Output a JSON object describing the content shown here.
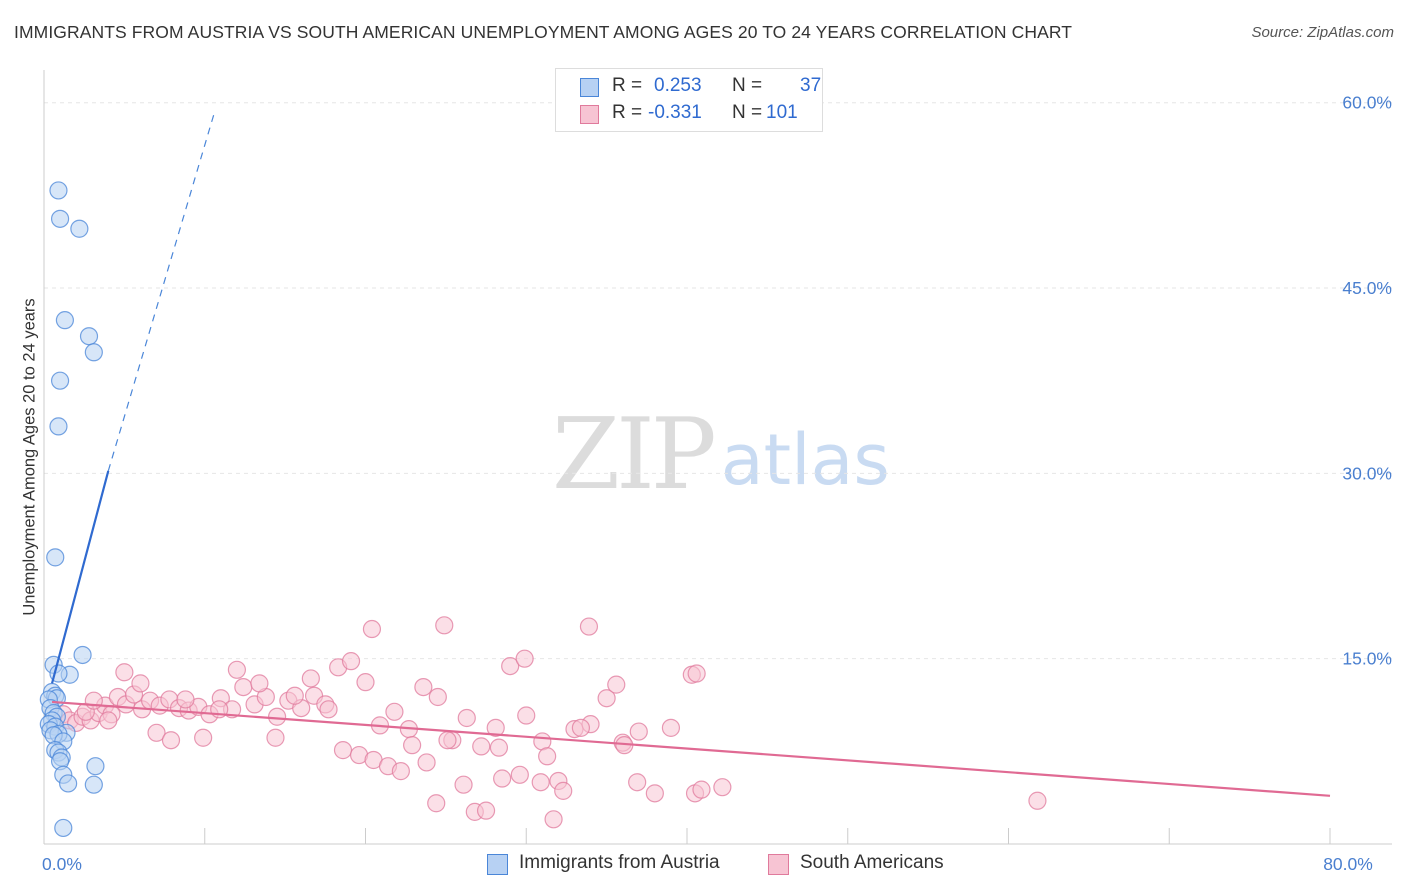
{
  "header": {
    "title": "IMMIGRANTS FROM AUSTRIA VS SOUTH AMERICAN UNEMPLOYMENT AMONG AGES 20 TO 24 YEARS CORRELATION CHART",
    "source": "Source: ZipAtlas.com"
  },
  "watermark": {
    "zip": "ZIP",
    "atlas": "atlas"
  },
  "legend": {
    "r_label": "R =",
    "n_label": "N =",
    "series": [
      {
        "name": "Immigrants from Austria",
        "r": "0.253",
        "n": "37",
        "color": "#4a86d8",
        "fill": "#b7d1f3"
      },
      {
        "name": "South Americans",
        "r": "-0.331",
        "n": "101",
        "color": "#e07a9c",
        "fill": "#f7c4d3"
      }
    ]
  },
  "chart_data": {
    "type": "scatter",
    "title": "IMMIGRANTS FROM AUSTRIA VS SOUTH AMERICAN UNEMPLOYMENT AMONG AGES 20 TO 24 YEARS CORRELATION CHART",
    "xlabel": "",
    "ylabel": "Unemployment Among Ages 20 to 24 years",
    "xlim": [
      0,
      80
    ],
    "ylim": [
      0,
      62
    ],
    "x_tick_labels": [
      {
        "value": 0,
        "label": "0.0%"
      },
      {
        "value": 80,
        "label": "80.0%"
      }
    ],
    "y_tick_labels": [
      {
        "value": 15,
        "label": "15.0%"
      },
      {
        "value": 30,
        "label": "30.0%"
      },
      {
        "value": 45,
        "label": "45.0%"
      },
      {
        "value": 60,
        "label": "60.0%"
      }
    ],
    "series": [
      {
        "name": "Immigrants from Austria",
        "color": "#4a86d8",
        "fill": "#b7d1f3",
        "points": [
          [
            0.9,
            52.9
          ],
          [
            1.0,
            50.6
          ],
          [
            2.2,
            49.8
          ],
          [
            1.3,
            42.4
          ],
          [
            2.8,
            41.1
          ],
          [
            3.1,
            39.8
          ],
          [
            1.0,
            37.5
          ],
          [
            0.9,
            33.8
          ],
          [
            0.7,
            23.2
          ],
          [
            2.4,
            15.3
          ],
          [
            0.6,
            14.5
          ],
          [
            1.6,
            13.7
          ],
          [
            0.9,
            13.8
          ],
          [
            0.5,
            12.3
          ],
          [
            0.7,
            12.0
          ],
          [
            0.8,
            11.8
          ],
          [
            0.3,
            11.7
          ],
          [
            0.4,
            11.0
          ],
          [
            0.6,
            10.6
          ],
          [
            0.8,
            10.3
          ],
          [
            0.5,
            10.0
          ],
          [
            0.3,
            9.7
          ],
          [
            0.7,
            9.5
          ],
          [
            0.4,
            9.2
          ],
          [
            1.4,
            9.0
          ],
          [
            0.9,
            8.9
          ],
          [
            0.6,
            8.8
          ],
          [
            1.2,
            8.3
          ],
          [
            0.7,
            7.6
          ],
          [
            0.9,
            7.4
          ],
          [
            1.1,
            7.0
          ],
          [
            1.0,
            6.7
          ],
          [
            3.2,
            6.3
          ],
          [
            1.2,
            5.6
          ],
          [
            1.5,
            4.9
          ],
          [
            3.1,
            4.8
          ],
          [
            1.2,
            1.3
          ]
        ],
        "trend": {
          "x": [
            0.5,
            4.0
          ],
          "y": [
            13.0,
            30.2
          ],
          "dashed_to": [
            10.6,
            59.2
          ]
        }
      },
      {
        "name": "South Americans",
        "color": "#e07a9c",
        "fill": "#f7c4d3",
        "points": [
          [
            1.2,
            10.5
          ],
          [
            1.6,
            10.0
          ],
          [
            2.0,
            9.8
          ],
          [
            2.4,
            10.3
          ],
          [
            2.9,
            10.0
          ],
          [
            3.4,
            10.6
          ],
          [
            3.8,
            11.2
          ],
          [
            4.2,
            10.5
          ],
          [
            4.6,
            11.9
          ],
          [
            5.1,
            11.3
          ],
          [
            5.6,
            12.1
          ],
          [
            6.1,
            10.9
          ],
          [
            6.6,
            11.6
          ],
          [
            7.2,
            11.2
          ],
          [
            7.8,
            11.7
          ],
          [
            8.4,
            11.0
          ],
          [
            9.0,
            10.8
          ],
          [
            9.6,
            11.1
          ],
          [
            10.3,
            10.5
          ],
          [
            11.0,
            11.8
          ],
          [
            11.7,
            10.9
          ],
          [
            12.4,
            12.7
          ],
          [
            13.1,
            11.3
          ],
          [
            13.8,
            11.9
          ],
          [
            14.5,
            10.3
          ],
          [
            15.2,
            11.6
          ],
          [
            16.0,
            11.0
          ],
          [
            16.8,
            12.0
          ],
          [
            17.5,
            11.3
          ],
          [
            18.3,
            14.3
          ],
          [
            19.1,
            14.8
          ],
          [
            20.0,
            13.1
          ],
          [
            20.9,
            9.6
          ],
          [
            21.8,
            10.7
          ],
          [
            22.7,
            9.3
          ],
          [
            23.6,
            12.7
          ],
          [
            24.5,
            11.9
          ],
          [
            25.4,
            8.4
          ],
          [
            26.3,
            10.2
          ],
          [
            27.2,
            7.9
          ],
          [
            28.1,
            9.4
          ],
          [
            29.0,
            14.4
          ],
          [
            30.0,
            10.4
          ],
          [
            31.0,
            8.3
          ],
          [
            32.0,
            5.1
          ],
          [
            33.0,
            9.3
          ],
          [
            34.0,
            9.7
          ],
          [
            35.0,
            11.8
          ],
          [
            36.0,
            8.2
          ],
          [
            37.0,
            9.1
          ],
          [
            38.0,
            4.1
          ],
          [
            39.0,
            9.4
          ],
          [
            2.6,
            10.7
          ],
          [
            3.1,
            11.6
          ],
          [
            4.0,
            10.0
          ],
          [
            5.0,
            13.9
          ],
          [
            6.0,
            13.0
          ],
          [
            7.0,
            9.0
          ],
          [
            7.9,
            8.4
          ],
          [
            8.8,
            11.7
          ],
          [
            9.9,
            8.6
          ],
          [
            10.9,
            10.9
          ],
          [
            12.0,
            14.1
          ],
          [
            13.4,
            13.0
          ],
          [
            14.4,
            8.6
          ],
          [
            15.6,
            12.0
          ],
          [
            16.6,
            13.4
          ],
          [
            17.7,
            10.9
          ],
          [
            18.6,
            7.6
          ],
          [
            19.6,
            7.2
          ],
          [
            20.5,
            6.8
          ],
          [
            21.4,
            6.3
          ],
          [
            22.2,
            5.9
          ],
          [
            22.9,
            8.0
          ],
          [
            23.8,
            6.6
          ],
          [
            24.4,
            3.3
          ],
          [
            25.1,
            8.4
          ],
          [
            26.1,
            4.8
          ],
          [
            26.8,
            2.6
          ],
          [
            27.5,
            2.7
          ],
          [
            28.5,
            5.3
          ],
          [
            29.6,
            5.6
          ],
          [
            30.9,
            5.0
          ],
          [
            31.7,
            2.0
          ],
          [
            32.3,
            4.3
          ],
          [
            33.4,
            9.4
          ],
          [
            36.1,
            8.0
          ],
          [
            36.9,
            5.0
          ],
          [
            40.5,
            4.1
          ],
          [
            40.9,
            4.4
          ],
          [
            42.2,
            4.6
          ],
          [
            61.8,
            3.5
          ],
          [
            20.4,
            17.4
          ],
          [
            24.9,
            17.7
          ],
          [
            29.9,
            15.0
          ],
          [
            35.6,
            12.9
          ],
          [
            40.3,
            13.7
          ],
          [
            40.6,
            13.8
          ],
          [
            31.3,
            7.1
          ],
          [
            33.9,
            17.6
          ],
          [
            28.3,
            7.8
          ]
        ],
        "trend": {
          "x": [
            0.5,
            80.0
          ],
          "y": [
            11.5,
            3.9
          ]
        }
      }
    ]
  }
}
